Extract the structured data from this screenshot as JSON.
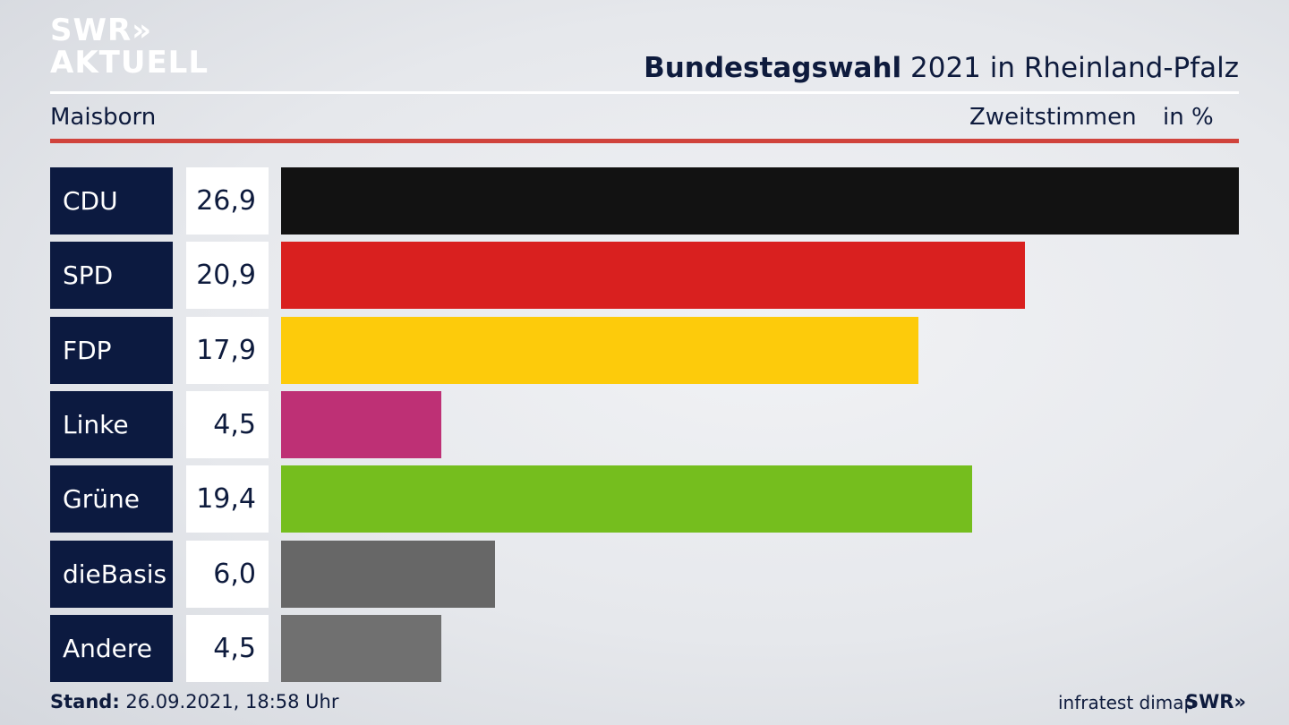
{
  "logo": {
    "line1": "SWR»",
    "line2": "AKTUELL"
  },
  "header": {
    "title_bold": "Bundestagswahl",
    "title_rest": " 2021 in Rheinland-Pfalz",
    "location": "Maisborn",
    "metric": "Zweitstimmen",
    "unit": "in %"
  },
  "chart_data": {
    "type": "bar",
    "orientation": "horizontal",
    "categories": [
      "CDU",
      "SPD",
      "FDP",
      "Linke",
      "Grüne",
      "dieBasis",
      "Andere"
    ],
    "values": [
      26.9,
      20.9,
      17.9,
      4.5,
      19.4,
      6.0,
      4.5
    ],
    "value_labels": [
      "26,9",
      "20,9",
      "17,9",
      "4,5",
      "19,4",
      "6,0",
      "4,5"
    ],
    "colors": [
      "#121212",
      "#d9201f",
      "#fdcb0b",
      "#be3075",
      "#75be1e",
      "#676767",
      "#707070"
    ],
    "title": "Bundestagswahl 2021 in Rheinland-Pfalz",
    "xlabel": "",
    "ylabel": "",
    "grid": false,
    "legend": "none"
  },
  "footer": {
    "stand_label": "Stand:",
    "stand_value": " 26.09.2021, 18:58 Uhr",
    "source": "infratest dimap",
    "brand": "SWR»"
  }
}
